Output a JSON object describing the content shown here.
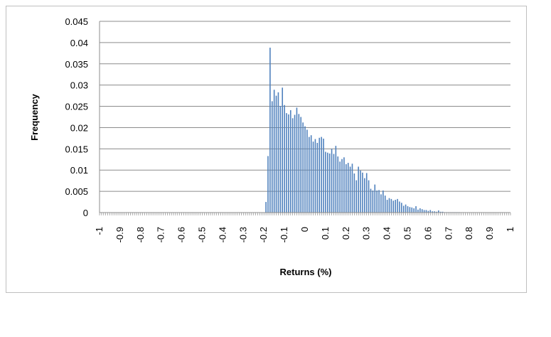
{
  "chart_data": {
    "type": "bar",
    "title": "",
    "xlabel": "Returns (%)",
    "ylabel": "Frequency",
    "xlim": [
      -1,
      1
    ],
    "ylim": [
      0,
      0.045
    ],
    "x_ticks": [
      "-1",
      "-0.9",
      "-0.8",
      "-0.7",
      "-0.6",
      "-0.5",
      "-0.4",
      "-0.3",
      "-0.2",
      "-0.1",
      "0",
      "0.1",
      "0.2",
      "0.3",
      "0.4",
      "0.5",
      "0.6",
      "0.7",
      "0.8",
      "0.9",
      "1"
    ],
    "y_ticks": [
      "0",
      "0.005",
      "0.01",
      "0.015",
      "0.02",
      "0.025",
      "0.03",
      "0.035",
      "0.04",
      "0.045"
    ],
    "grid": "horizontal",
    "legend": "none",
    "bar_color": "#4f81bd",
    "x": [
      -0.19,
      -0.18,
      -0.17,
      -0.16,
      -0.15,
      -0.14,
      -0.13,
      -0.12,
      -0.11,
      -0.1,
      -0.09,
      -0.08,
      -0.07,
      -0.06,
      -0.05,
      -0.04,
      -0.03,
      -0.02,
      -0.01,
      0.0,
      0.01,
      0.02,
      0.03,
      0.04,
      0.05,
      0.06,
      0.07,
      0.08,
      0.09,
      0.1,
      0.11,
      0.12,
      0.13,
      0.14,
      0.15,
      0.16,
      0.17,
      0.18,
      0.19,
      0.2,
      0.21,
      0.22,
      0.23,
      0.24,
      0.25,
      0.26,
      0.27,
      0.28,
      0.29,
      0.3,
      0.31,
      0.32,
      0.33,
      0.34,
      0.35,
      0.36,
      0.37,
      0.38,
      0.39,
      0.4,
      0.41,
      0.42,
      0.43,
      0.44,
      0.45,
      0.46,
      0.47,
      0.48,
      0.49,
      0.5,
      0.51,
      0.52,
      0.53,
      0.54,
      0.55,
      0.56,
      0.57,
      0.58,
      0.59,
      0.6,
      0.61,
      0.62,
      0.63,
      0.64,
      0.65,
      0.66,
      0.67,
      0.68,
      0.69,
      0.7,
      0.71,
      0.72,
      0.73,
      0.74,
      0.75
    ],
    "values": [
      0.0025,
      0.0133,
      0.0388,
      0.0262,
      0.0289,
      0.0275,
      0.0283,
      0.0251,
      0.0294,
      0.0253,
      0.0234,
      0.0231,
      0.0241,
      0.0222,
      0.023,
      0.0247,
      0.0232,
      0.0225,
      0.0212,
      0.0203,
      0.0195,
      0.0178,
      0.0182,
      0.0167,
      0.0173,
      0.0164,
      0.0176,
      0.0178,
      0.0174,
      0.0143,
      0.0141,
      0.0139,
      0.015,
      0.0138,
      0.0157,
      0.0132,
      0.012,
      0.0126,
      0.013,
      0.0114,
      0.0117,
      0.0108,
      0.0115,
      0.0092,
      0.0076,
      0.0108,
      0.0099,
      0.0094,
      0.0081,
      0.0093,
      0.0076,
      0.0056,
      0.0052,
      0.0066,
      0.0052,
      0.0053,
      0.0043,
      0.0052,
      0.004,
      0.003,
      0.0034,
      0.0032,
      0.0028,
      0.003,
      0.0032,
      0.0026,
      0.0023,
      0.0016,
      0.0019,
      0.0015,
      0.0013,
      0.0012,
      0.001,
      0.0015,
      0.0007,
      0.001,
      0.0008,
      0.0006,
      0.0006,
      0.0004,
      0.0006,
      0.0003,
      0.0003,
      0.0002,
      0.0005,
      0.0002,
      0.0002,
      0.0001,
      0.0001,
      0.0001,
      0.0001,
      0.0001,
      0.0001,
      0.0001,
      0.0001
    ]
  }
}
